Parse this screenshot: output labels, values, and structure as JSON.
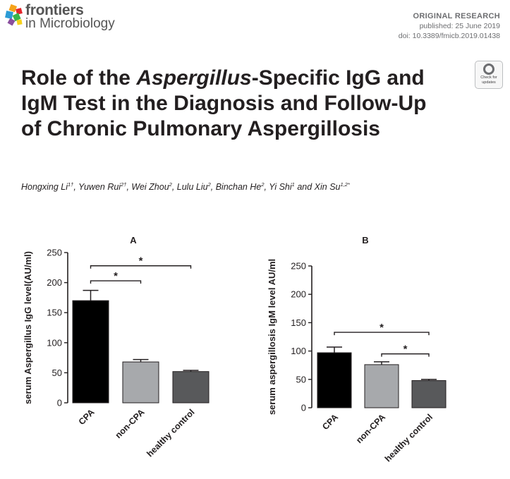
{
  "header": {
    "brand": "frontiers",
    "journal": "in Microbiology",
    "article_type": "ORIGINAL RESEARCH",
    "published": "published: 25 June 2019",
    "doi": "doi: 10.3389/fmicb.2019.01438"
  },
  "badge": {
    "line1": "Check for",
    "line2": "updates"
  },
  "title": {
    "part1": "Role of the ",
    "italic": "Aspergillus",
    "part2": "-Specific IgG and IgM Test in the Diagnosis and Follow-Up of Chronic Pulmonary Aspergillosis"
  },
  "authors": [
    {
      "name": "Hongxing Li",
      "sup": "1†",
      "sep": ", "
    },
    {
      "name": "Yuwen Rui",
      "sup": "2†",
      "sep": ", "
    },
    {
      "name": "Wei Zhou",
      "sup": "2",
      "sep": ", "
    },
    {
      "name": "Lulu Liu",
      "sup": "2",
      "sep": ", "
    },
    {
      "name": "Binchan He",
      "sup": "2",
      "sep": ", "
    },
    {
      "name": "Yi Shi",
      "sup": "1",
      "sep": " and "
    },
    {
      "name": "Xin Su",
      "sup": "1,2*",
      "sep": ""
    }
  ],
  "colors": {
    "CPA": "#000000",
    "non-CPA": "#a7a9ac",
    "healthy control": "#58595b"
  },
  "chart_data": [
    {
      "type": "bar",
      "panel": "A",
      "ylabel": "serum Aspergillus IgG level(AU/ml)",
      "ylim": [
        0,
        250
      ],
      "yticks": [
        0,
        50,
        100,
        150,
        200,
        250
      ],
      "categories": [
        "CPA",
        "non-CPA",
        "healthy control"
      ],
      "values": [
        170,
        68,
        52
      ],
      "errors": [
        17,
        4,
        2
      ],
      "significance": [
        {
          "from": 0,
          "to": 1,
          "label": "*",
          "y": 203
        },
        {
          "from": 0,
          "to": 2,
          "label": "*",
          "y": 228
        }
      ]
    },
    {
      "type": "bar",
      "panel": "B",
      "ylabel": "serum aspergillosis IgM level AU/ml",
      "ylim": [
        0,
        250
      ],
      "yticks": [
        0,
        50,
        100,
        150,
        200,
        250
      ],
      "categories": [
        "CPA",
        "non-CPA",
        "healthy control"
      ],
      "values": [
        97,
        76,
        48
      ],
      "errors": [
        10,
        5,
        2
      ],
      "significance": [
        {
          "from": 0,
          "to": 2,
          "label": "*",
          "y": 133
        },
        {
          "from": 1,
          "to": 2,
          "label": "*",
          "y": 95
        }
      ]
    }
  ]
}
